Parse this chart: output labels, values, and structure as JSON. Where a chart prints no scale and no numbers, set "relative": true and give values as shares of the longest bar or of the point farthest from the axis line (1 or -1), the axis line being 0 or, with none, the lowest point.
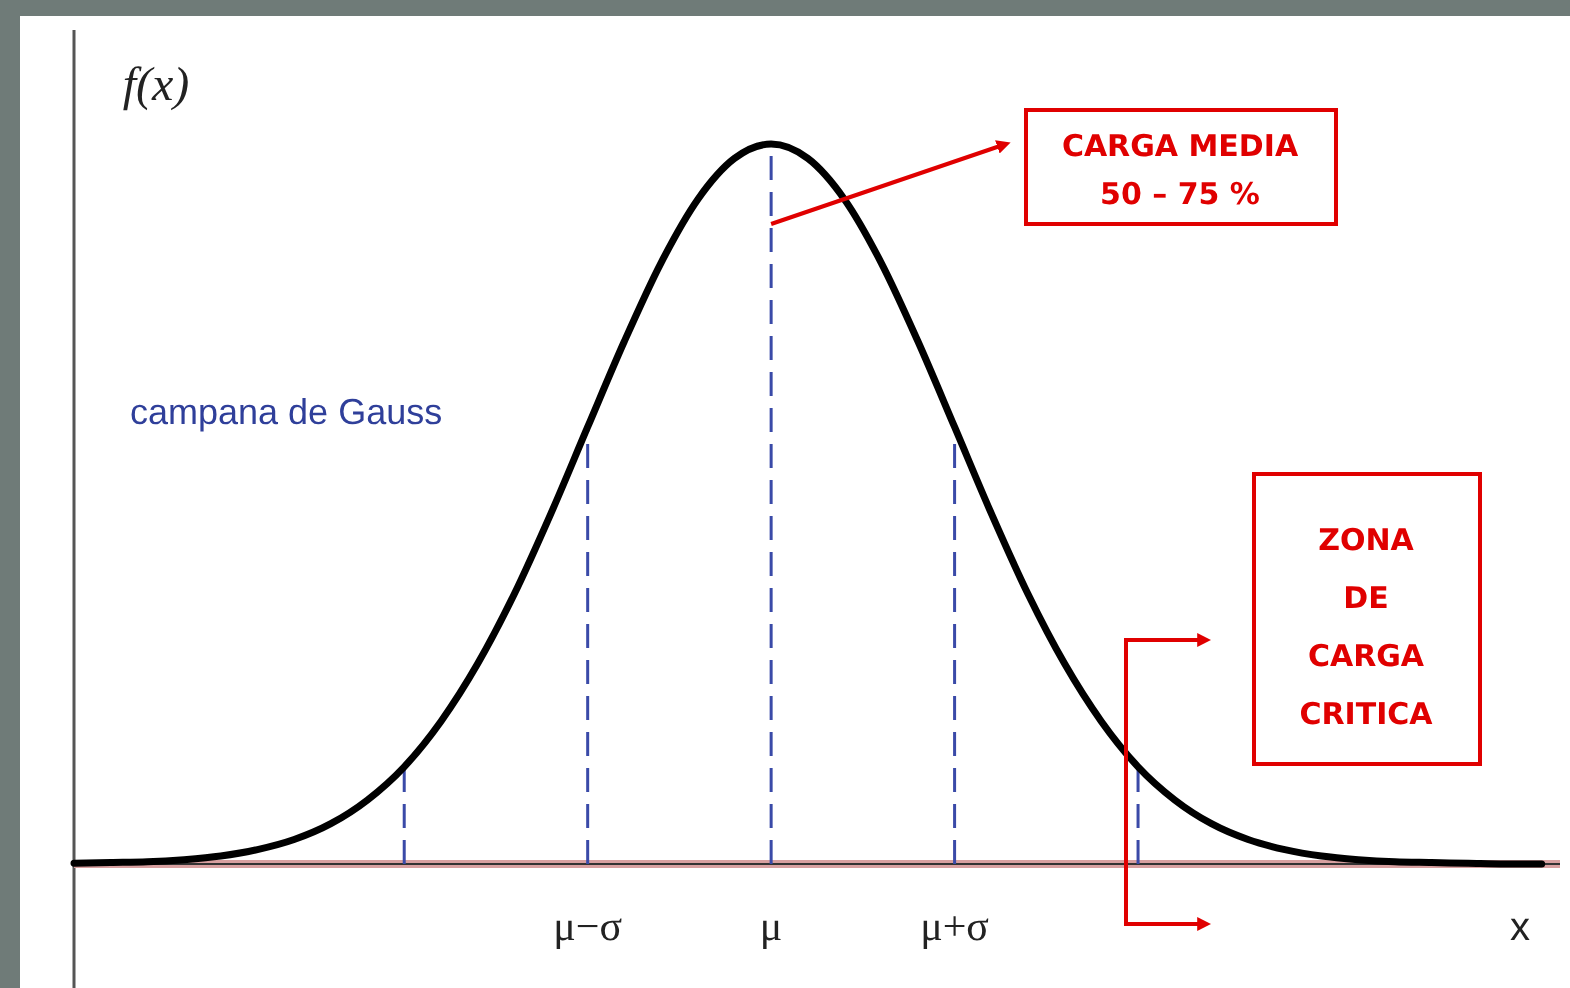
{
  "chart_data": {
    "type": "line",
    "relative": true,
    "ylabel": "f(x)",
    "xlabel": "x",
    "categories": [
      null,
      null,
      null,
      null,
      null,
      null,
      null,
      null,
      null,
      null,
      null,
      null,
      null,
      null,
      "μ−σ",
      null,
      null,
      null,
      null,
      "μ",
      null,
      null,
      null,
      null,
      "μ+σ",
      null,
      null,
      null,
      null,
      null,
      null,
      null,
      null,
      null,
      null,
      null,
      null,
      null,
      null,
      null,
      null
    ],
    "series": [
      {
        "color": "#000000",
        "values": [
          0.001,
          0.002,
          0.003,
          0.006,
          0.011,
          0.02,
          0.034,
          0.056,
          0.089,
          0.135,
          0.198,
          0.278,
          0.375,
          0.487,
          0.607,
          0.726,
          0.835,
          0.923,
          0.98,
          1,
          0.98,
          0.923,
          0.835,
          0.726,
          0.607,
          0.487,
          0.375,
          0.278,
          0.198,
          0.135,
          0.089,
          0.056,
          0.034,
          0.02,
          0.011,
          0.006,
          0.003,
          0.002,
          0.001,
          0.0,
          0.0
        ]
      }
    ],
    "tick_labels": "x",
    "marker": "none",
    "line_style": "solid",
    "ref_lines": [
      {
        "axis": "x",
        "value": "μ−σ",
        "color": "#3a4aa8",
        "line_style": "dashed"
      },
      {
        "axis": "x",
        "value": "μ",
        "color": "#3a4aa8",
        "line_style": "dashed"
      },
      {
        "axis": "x",
        "value": "μ+σ",
        "color": "#3a4aa8",
        "line_style": "dashed"
      }
    ],
    "annotations": [
      "campana de Gauss",
      "CARGA MEDIA\n50 – 75 %",
      "ZONA\nDE\nCARGA\nCRITICA"
    ]
  }
}
